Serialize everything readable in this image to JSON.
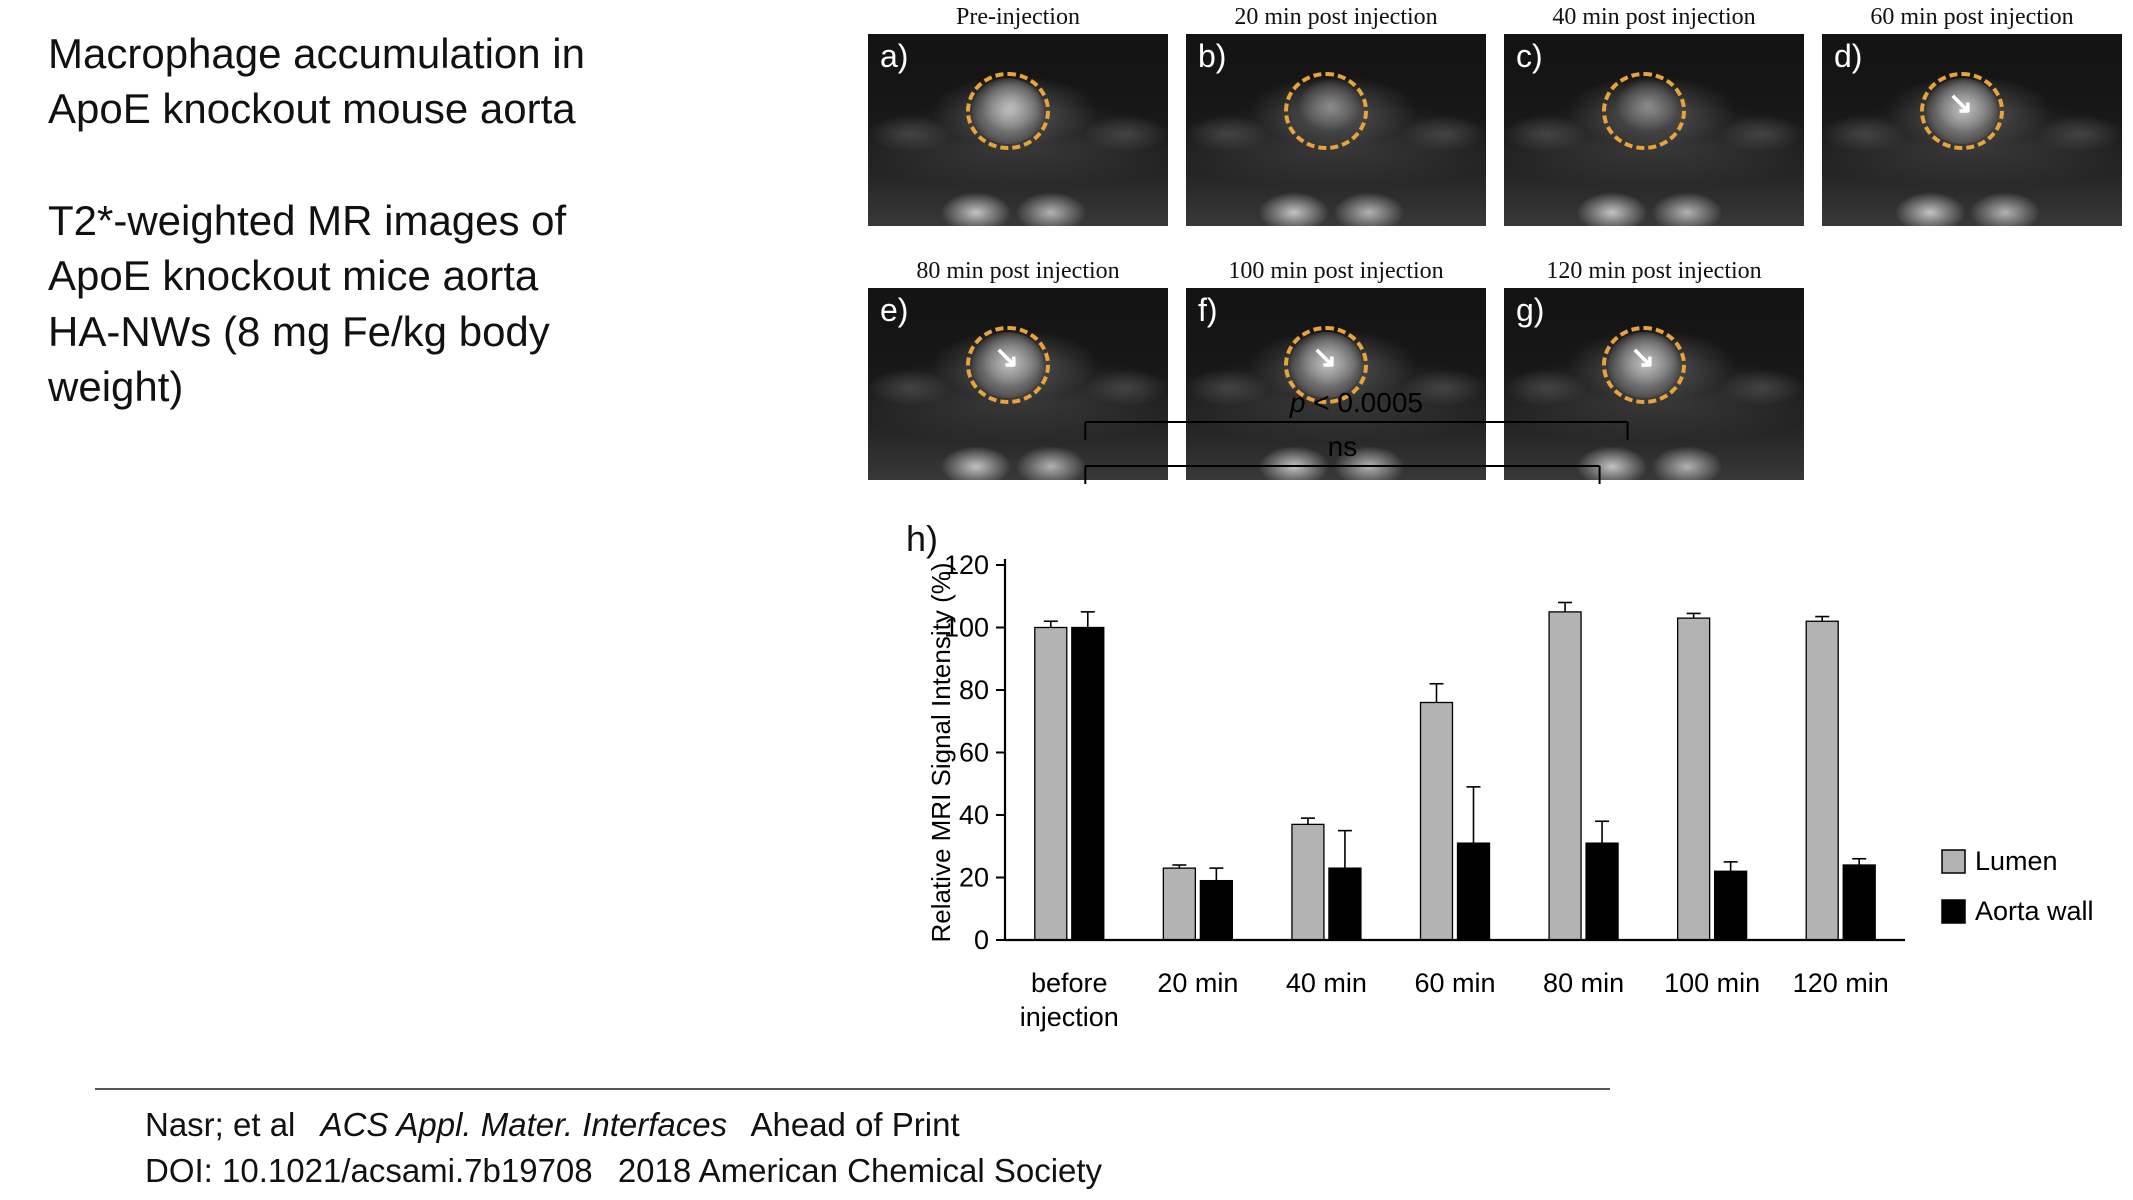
{
  "slide": {
    "description_para1": "Macrophage accumulation in ApoE knockout mouse aorta",
    "description_para2": "T2*-weighted MR images of ApoE knockout mice aorta HA-NWs (8 mg Fe/kg body weight)"
  },
  "mri_panels": [
    {
      "label": "a)",
      "title": "Pre-injection",
      "row": 1,
      "arrow": false,
      "bright": true
    },
    {
      "label": "b)",
      "title": "20 min post injection",
      "row": 1,
      "arrow": false,
      "bright": false
    },
    {
      "label": "c)",
      "title": "40 min post injection",
      "row": 1,
      "arrow": false,
      "bright": false
    },
    {
      "label": "d)",
      "title": "60 min post injection",
      "row": 1,
      "arrow": true,
      "bright": true
    },
    {
      "label": "e)",
      "title": "80 min post injection",
      "row": 2,
      "arrow": true,
      "bright": true
    },
    {
      "label": "f)",
      "title": "100 min post injection",
      "row": 2,
      "arrow": true,
      "bright": true
    },
    {
      "label": "g)",
      "title": "120 min post injection",
      "row": 2,
      "arrow": true,
      "bright": true
    }
  ],
  "chart_data": {
    "type": "bar",
    "panel_label": "h)",
    "title": "",
    "xlabel": "",
    "ylabel": "Relative MRI Signal Intensity (%)",
    "ylim": [
      0,
      120
    ],
    "yticks": [
      0,
      20,
      40,
      60,
      80,
      100,
      120
    ],
    "grid": false,
    "legend_position": "right",
    "categories": [
      "before\ninjection",
      "20 min",
      "40 min",
      "60 min",
      "80 min",
      "100 min",
      "120 min"
    ],
    "series": [
      {
        "name": "Lumen",
        "color": "#b3b3b3",
        "values": [
          100,
          23,
          37,
          76,
          105,
          103,
          102
        ],
        "errors": [
          2,
          1,
          2,
          6,
          3,
          1.5,
          1.5
        ]
      },
      {
        "name": "Aorta wall",
        "color": "#000000",
        "values": [
          100,
          19,
          23,
          31,
          31,
          22,
          24
        ],
        "errors": [
          5,
          4,
          12,
          18,
          7,
          3,
          2
        ]
      }
    ],
    "annotations": [
      {
        "text": "p < 0.0005",
        "from_group": 0,
        "to_group": 4,
        "level": 1
      },
      {
        "text": "ns",
        "from_group": 0,
        "to_group": 4,
        "level": 2
      }
    ]
  },
  "footer": {
    "authors": "Nasr; et al",
    "journal": "ACS Appl. Mater. Interfaces",
    "status": "Ahead of Print",
    "doi": "DOI: 10.1021/acsami.7b19708",
    "copyright": "2018 American Chemical Society"
  },
  "icons": {
    "arrow": "↘"
  },
  "colors": {
    "roi_circle": "#E8A33B",
    "lumen_bar": "#b3b3b3",
    "aorta_wall_bar": "#000000",
    "axis": "#000000"
  }
}
